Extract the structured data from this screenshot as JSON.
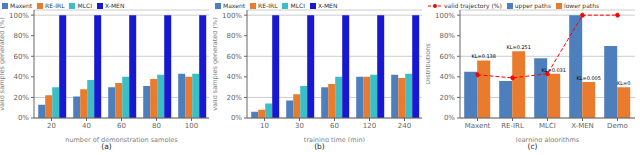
{
  "chart_data": [
    {
      "type": "bar",
      "title": "(a)",
      "xlabel": "number of demonstration samples",
      "ylabel": "valid samples generated (%)",
      "categories": [
        "20",
        "40",
        "60",
        "80",
        "100"
      ],
      "series": [
        {
          "name": "Maxent",
          "color": "#4d7fbc",
          "values": [
            13,
            21,
            30,
            31,
            43
          ]
        },
        {
          "name": "RE-IRL",
          "color": "#e87b2e",
          "values": [
            22,
            28,
            34,
            38,
            40
          ]
        },
        {
          "name": "MLCI",
          "color": "#3bbfc4",
          "values": [
            30,
            37,
            40,
            42,
            43
          ]
        },
        {
          "name": "X-MEN",
          "color": "#1818d0",
          "values": [
            100,
            100,
            100,
            100,
            100
          ]
        }
      ],
      "ylim": [
        0,
        105
      ],
      "yticks": [
        {
          "value": 0,
          "label": "0%"
        },
        {
          "value": 20,
          "label": "20%"
        },
        {
          "value": 40,
          "label": "40%"
        },
        {
          "value": 60,
          "label": "60%"
        },
        {
          "value": 80,
          "label": "80%"
        },
        {
          "value": 100,
          "label": "100%"
        }
      ],
      "grid": true,
      "legend": "upper left"
    },
    {
      "type": "bar",
      "title": "(b)",
      "xlabel": "training time (min)",
      "ylabel": "valid samples generated (%)",
      "categories": [
        "10",
        "30",
        "60",
        "120",
        "240"
      ],
      "series": [
        {
          "name": "Maxent",
          "color": "#4d7fbc",
          "values": [
            6,
            17,
            30,
            40,
            42
          ]
        },
        {
          "name": "RE-IRL",
          "color": "#e87b2e",
          "values": [
            8,
            23,
            33,
            40,
            39
          ]
        },
        {
          "name": "MLCI",
          "color": "#3bbfc4",
          "values": [
            14,
            31,
            40,
            42,
            43
          ]
        },
        {
          "name": "X-MEN",
          "color": "#1818d0",
          "values": [
            100,
            100,
            100,
            100,
            100
          ]
        }
      ],
      "ylim": [
        0,
        105
      ],
      "yticks": [
        {
          "value": 0,
          "label": "0%"
        },
        {
          "value": 20,
          "label": "20%"
        },
        {
          "value": 40,
          "label": "40%"
        },
        {
          "value": 60,
          "label": "60%"
        },
        {
          "value": 80,
          "label": "80%"
        },
        {
          "value": 100,
          "label": "100%"
        }
      ],
      "grid": true,
      "legend": "upper left"
    },
    {
      "type": "bar",
      "title": "(c)",
      "xlabel": "learning algorithms",
      "ylabel": "Distributions",
      "categories": [
        "Maxent",
        "RE-IRL",
        "MLCI",
        "X-MEN",
        "Demo"
      ],
      "series": [
        {
          "name": "valid trajectory (%)",
          "type": "line",
          "color": "#ff0000",
          "line_style": "dashed",
          "marker": "circle",
          "values": [
            42,
            39,
            43,
            100,
            100
          ]
        },
        {
          "name": "upper paths",
          "type": "bar",
          "color": "#4d7fbc",
          "values": [
            45,
            36,
            58,
            100,
            70
          ]
        },
        {
          "name": "lower paths",
          "type": "bar",
          "color": "#e87b2e",
          "values": [
            56,
            65,
            43,
            35,
            30
          ]
        }
      ],
      "annotations": [
        "KL=0.138",
        "KL=0.251",
        "KL=0.031",
        "KL=0.005",
        "KL=0"
      ],
      "ylim": [
        0,
        105
      ],
      "yticks": [
        {
          "value": 0,
          "label": "0%"
        },
        {
          "value": 20,
          "label": "20%"
        },
        {
          "value": 40,
          "label": "40%"
        },
        {
          "value": 60,
          "label": "60%"
        },
        {
          "value": 80,
          "label": "80%"
        },
        {
          "value": 100,
          "label": "100%"
        }
      ],
      "grid": true,
      "legend": "upper left"
    }
  ]
}
